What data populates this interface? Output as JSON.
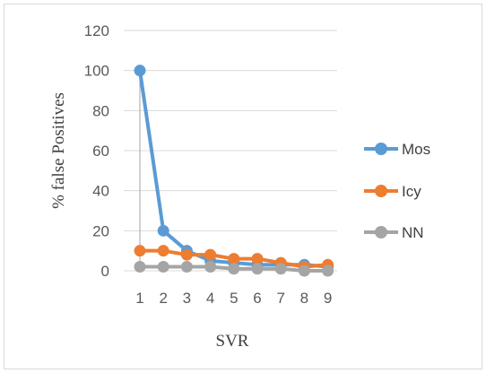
{
  "chart_data": {
    "type": "line",
    "title": "",
    "xlabel": "SVR",
    "ylabel": "% false Positives",
    "categories": [
      "1",
      "2",
      "3",
      "4",
      "5",
      "6",
      "7",
      "8",
      "9"
    ],
    "ylim": [
      0,
      120
    ],
    "yticks": [
      "0",
      "20",
      "40",
      "60",
      "80",
      "100",
      "120"
    ],
    "grid": "horizontal",
    "legend_position": "right",
    "series": [
      {
        "name": "Mos",
        "color": "#5b9bd5",
        "values": [
          100,
          20,
          10,
          5,
          4,
          3,
          3,
          3,
          2
        ]
      },
      {
        "name": "Icy",
        "color": "#ed7d31",
        "values": [
          10,
          10,
          8,
          8,
          6,
          6,
          4,
          2,
          3
        ]
      },
      {
        "name": "NN",
        "color": "#a5a5a5",
        "values": [
          2,
          2,
          2,
          2,
          1,
          1,
          1,
          0,
          0
        ]
      }
    ]
  }
}
